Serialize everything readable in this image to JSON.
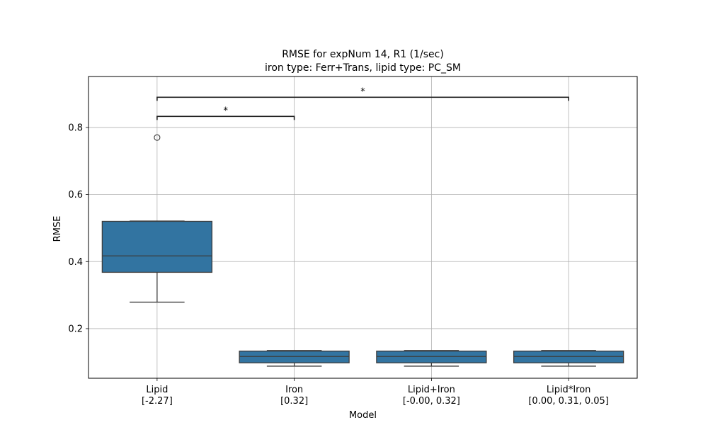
{
  "chart_data": {
    "type": "box",
    "title": "RMSE for expNum 14, R1 (1/sec)",
    "subtitle": "iron type: Ferr+Trans, lipid type: PC_SM",
    "xlabel": "Model",
    "ylabel": "RMSE",
    "ylim": [
      0.052,
      0.952
    ],
    "yticks": [
      0.2,
      0.4,
      0.6,
      0.8
    ],
    "ytick_labels": [
      "0.2",
      "0.4",
      "0.6",
      "0.8"
    ],
    "grid": true,
    "categories": [
      {
        "name": "Lipid",
        "coeffs": "[-2.27]"
      },
      {
        "name": "Iron",
        "coeffs": "[0.32]"
      },
      {
        "name": "Lipid+Iron",
        "coeffs": "[-0.00, 0.32]"
      },
      {
        "name": "Lipid*Iron",
        "coeffs": "[0.00, 0.31, 0.05]"
      }
    ],
    "boxes": [
      {
        "whisker_low": 0.279,
        "q1": 0.368,
        "median": 0.417,
        "q3": 0.52,
        "whisker_high": 0.521,
        "outliers": [
          0.77
        ]
      },
      {
        "whisker_low": 0.088,
        "q1": 0.098,
        "median": 0.117,
        "q3": 0.133,
        "whisker_high": 0.135,
        "outliers": []
      },
      {
        "whisker_low": 0.088,
        "q1": 0.098,
        "median": 0.117,
        "q3": 0.133,
        "whisker_high": 0.135,
        "outliers": []
      },
      {
        "whisker_low": 0.088,
        "q1": 0.098,
        "median": 0.117,
        "q3": 0.133,
        "whisker_high": 0.135,
        "outliers": []
      }
    ],
    "significance": [
      {
        "from": 0,
        "to": 1,
        "y": 0.833,
        "label": "*"
      },
      {
        "from": 0,
        "to": 3,
        "y": 0.89,
        "label": "*"
      }
    ],
    "box_color": "#3274a1",
    "edge_color": "#3d3d3d",
    "grid_color": "#b0b0b0"
  }
}
